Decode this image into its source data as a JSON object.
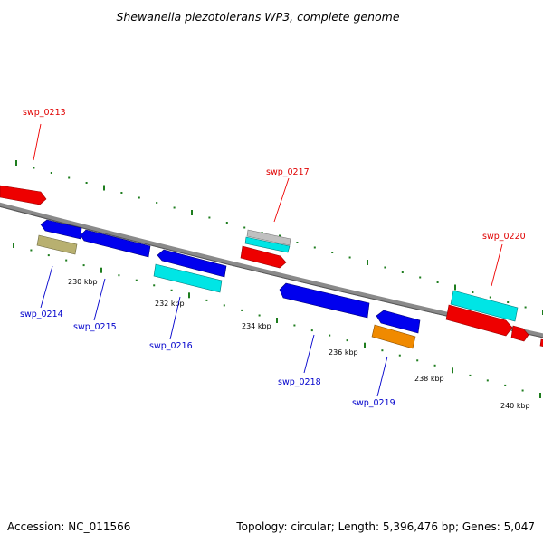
{
  "title": "Shewanella piezotolerans WP3, complete genome",
  "footer": {
    "accession": "Accession: NC_011566",
    "summary": "Topology: circular; Length: 5,396,476 bp; Genes: 5,047"
  },
  "colors": {
    "backbone": "#7f7f7f",
    "tick": "#1e7d1e",
    "forward_label": "#e00000",
    "reverse_label": "#0000cc"
  },
  "scale_ticks": [
    {
      "label": "230 kbp",
      "kbp": 230
    },
    {
      "label": "232 kbp",
      "kbp": 232
    },
    {
      "label": "234 kbp",
      "kbp": 234
    },
    {
      "label": "236 kbp",
      "kbp": 236
    },
    {
      "label": "238 kbp",
      "kbp": 238
    },
    {
      "label": "240 kbp",
      "kbp": 240
    }
  ],
  "genes": [
    {
      "id": "swp_0213",
      "strand": "forward",
      "color": "#ee0000",
      "label": "swp_0213"
    },
    {
      "id": "swp_0214",
      "strand": "reverse",
      "color": "#0000ee",
      "label": "swp_0214"
    },
    {
      "id": "swp_0215",
      "strand": "reverse",
      "color": "#0000ee",
      "label": "swp_0215"
    },
    {
      "id": "swp_0216",
      "strand": "reverse",
      "color": "#0000ee",
      "label": "swp_0216"
    },
    {
      "id": "swp_0217",
      "strand": "forward",
      "color": "#ee0000",
      "label": "swp_0217"
    },
    {
      "id": "swp_0218",
      "strand": "reverse",
      "color": "#0000ee",
      "label": "swp_0218"
    },
    {
      "id": "swp_0219",
      "strand": "reverse",
      "color": "#0000ee",
      "label": "swp_0219"
    },
    {
      "id": "swp_0220",
      "strand": "forward",
      "color": "#ee0000",
      "label": "swp_0220"
    },
    {
      "id": "swp_0221",
      "strand": "forward",
      "color": "#ee0000",
      "label": ""
    }
  ],
  "feature_colors": {
    "cyan": "#00e5e5",
    "olive": "#b8b070",
    "orange": "#f08a00",
    "gray": "#c0c0c0"
  }
}
